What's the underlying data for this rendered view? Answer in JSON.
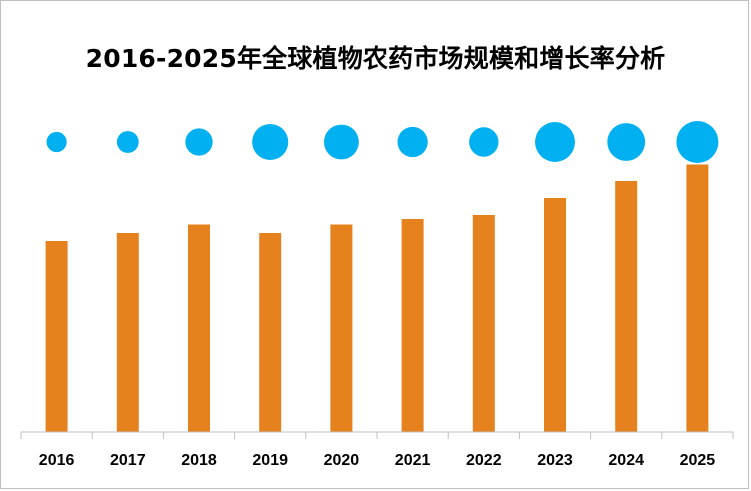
{
  "chart_data": {
    "type": "bar",
    "title": "2016-2025年全球植物农药市场规模和增长率分析",
    "categories": [
      "2016",
      "2017",
      "2018",
      "2019",
      "2020",
      "2021",
      "2022",
      "2023",
      "2024",
      "2025"
    ],
    "series": [
      {
        "values": [
          38.2,
          39.8,
          41.5,
          39.8,
          41.5,
          42.6,
          43.4,
          46.8,
          50.2,
          53.5
        ]
      },
      {
        "values": [
          4.8,
          5.2,
          6.5,
          8.6,
          8.3,
          7.2,
          7.0,
          9.5,
          9.0,
          10.0
        ]
      }
    ],
    "colors": {
      "bars": "#E6821E",
      "bubbles": "#00B0F0",
      "axis": "#bfbfbf"
    },
    "grid": false,
    "legend": "none"
  }
}
